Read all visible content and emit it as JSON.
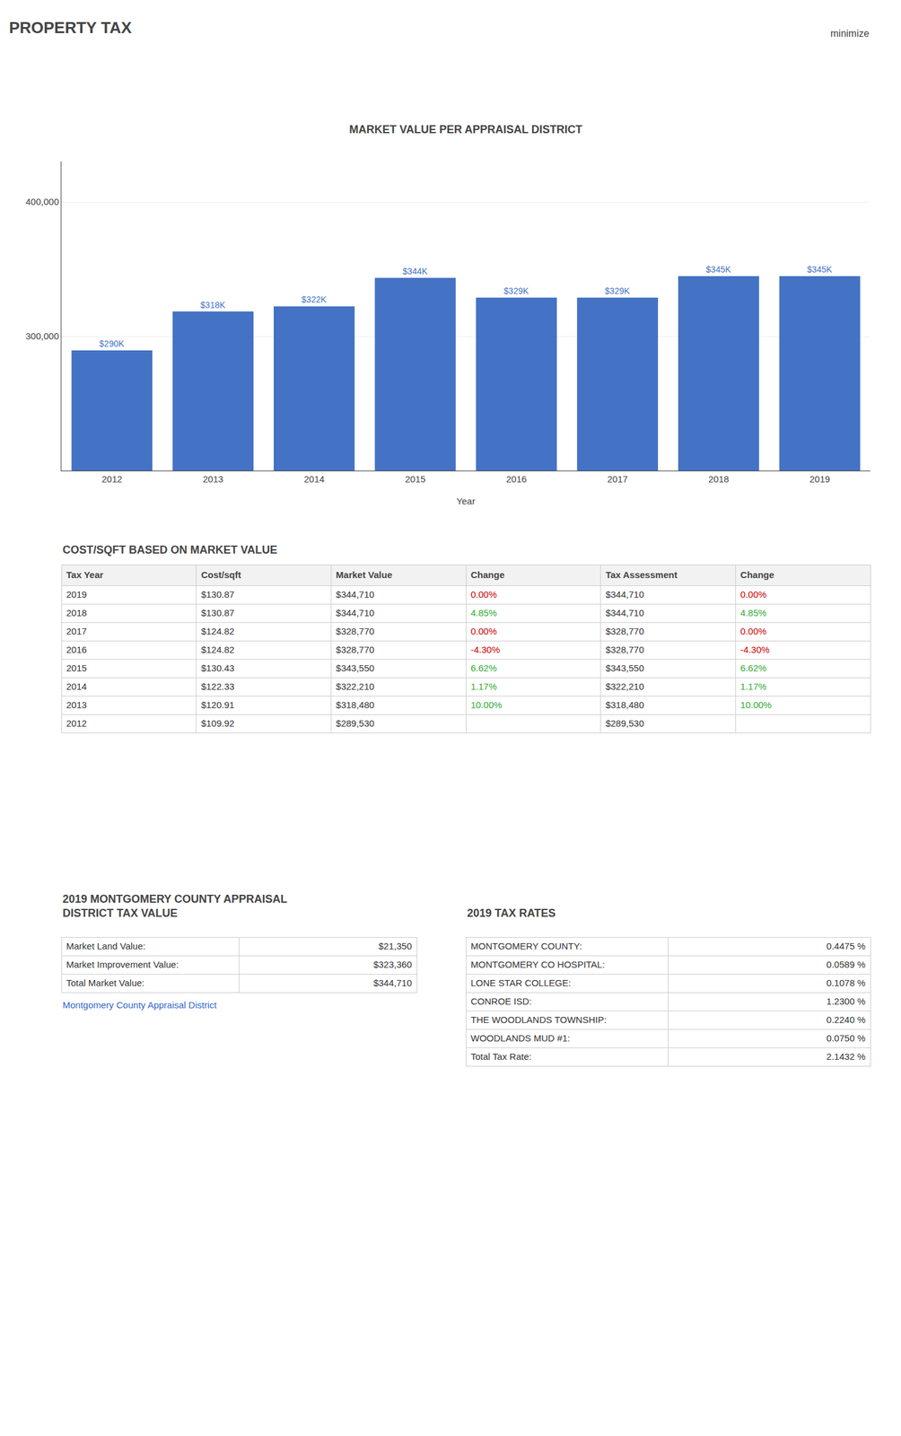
{
  "title": "PROPERTY TAX",
  "annotations": [
    "minimize"
  ],
  "chart_data": [
    {
      "type": "bar",
      "title": "MARKET VALUE PER APPRAISAL DISTRICT",
      "x_label": "Year",
      "categories": [
        "2012",
        "2013",
        "2014",
        "2015",
        "2016",
        "2017",
        "2018",
        "2019"
      ],
      "values": [
        289530,
        318480,
        322210,
        343550,
        328770,
        328770,
        344710,
        344710
      ],
      "value_labels": [
        "$290K",
        "$318K",
        "$322K",
        "$344K",
        "$329K",
        "$329K",
        "$345K",
        "$345K"
      ],
      "data_labels": true,
      "color": "#4472c4",
      "ylim": [
        200000,
        430000
      ],
      "yticks": [
        {
          "value": 300000,
          "label": "300,000"
        },
        {
          "value": 400000,
          "label": "400,000"
        }
      ],
      "grid": true
    },
    {
      "type": "table",
      "title": "COST/SQFT BASED ON MARKET VALUE",
      "header": [
        "Tax Year",
        "Cost/sqft",
        "Market Value",
        "Change",
        "Tax Assessment",
        "Change"
      ],
      "rows": [
        [
          "2019",
          "$130.87",
          "$344,710",
          "0.00%",
          "$344,710",
          "0.00%"
        ],
        [
          "2018",
          "$130.87",
          "$344,710",
          "4.85%",
          "$344,710",
          "4.85%"
        ],
        [
          "2017",
          "$124.82",
          "$328,770",
          "0.00%",
          "$328,770",
          "0.00%"
        ],
        [
          "2016",
          "$124.82",
          "$328,770",
          "-4.30%",
          "$328,770",
          "-4.30%"
        ],
        [
          "2015",
          "$130.43",
          "$343,550",
          "6.62%",
          "$343,550",
          "6.62%"
        ],
        [
          "2014",
          "$122.33",
          "$322,210",
          "1.17%",
          "$322,210",
          "1.17%"
        ],
        [
          "2013",
          "$120.91",
          "$318,480",
          "10.00%",
          "$318,480",
          "10.00%"
        ],
        [
          "2012",
          "$109.92",
          "$289,530",
          null,
          "$289,530",
          null
        ]
      ],
      "colors": [
        [
          null,
          null,
          null,
          "#cc0000",
          null,
          "#cc0000"
        ],
        [
          null,
          null,
          null,
          "#33aa33",
          null,
          "#33aa33"
        ],
        [
          null,
          null,
          null,
          "#cc0000",
          null,
          "#cc0000"
        ],
        [
          null,
          null,
          null,
          "#cc0000",
          null,
          "#cc0000"
        ],
        [
          null,
          null,
          null,
          "#33aa33",
          null,
          "#33aa33"
        ],
        [
          null,
          null,
          null,
          "#33aa33",
          null,
          "#33aa33"
        ],
        [
          null,
          null,
          null,
          "#33aa33",
          null,
          "#33aa33"
        ],
        [
          null,
          null,
          null,
          null,
          null,
          null
        ]
      ]
    },
    {
      "type": "table",
      "title": "2019 MONTGOMERY COUNTY APPRAISAL\nDISTRICT TAX VALUE",
      "rows": [
        [
          "Market Land Value:",
          "$21,350"
        ],
        [
          "Market Improvement Value:",
          "$323,360"
        ],
        [
          "Total Market Value:",
          "$344,710"
        ]
      ],
      "annotations": [
        "Montgomery County Appraisal District"
      ]
    },
    {
      "type": "table",
      "title": "2019 TAX RATES",
      "rows": [
        [
          "MONTGOMERY COUNTY:",
          "0.4475 %"
        ],
        [
          "MONTGOMERY CO HOSPITAL:",
          "0.0589 %"
        ],
        [
          "LONE STAR COLLEGE:",
          "0.1078 %"
        ],
        [
          "CONROE ISD:",
          "1.2300 %"
        ],
        [
          "THE WOODLANDS TOWNSHIP:",
          "0.2240 %"
        ],
        [
          "WOODLANDS MUD #1:",
          "0.0750 %"
        ],
        [
          "Total Tax Rate:",
          "2.1432 %"
        ]
      ]
    }
  ]
}
